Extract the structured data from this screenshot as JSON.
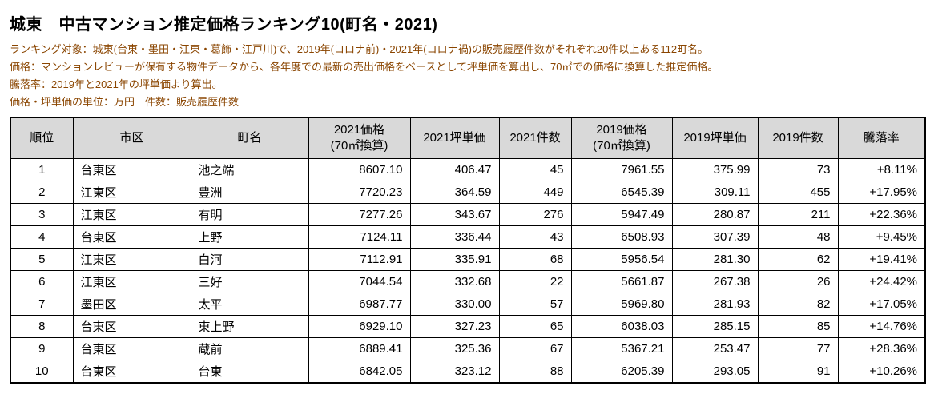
{
  "page": {
    "title": "城東　中古マンション推定価格ランキング10(町名・2021)",
    "notes": [
      "ランキング対象：城東(台東・墨田・江東・葛飾・江戸川)で、2019年(コロナ前)・2021年(コロナ禍)の販売履歴件数がそれぞれ20件以上ある112町名。",
      "価格：マンションレビューが保有する物件データから、各年度での最新の売出価格をベースとして坪単価を算出し、70㎡での価格に換算した推定価格。",
      "騰落率：2019年と2021年の坪単価より算出。",
      "価格・坪単価の単位：万円　件数：販売履歴件数"
    ]
  },
  "table": {
    "column_keys": [
      "rank",
      "ward",
      "town",
      "price-2021",
      "tsubo-price-2021",
      "count-2021",
      "price-2019",
      "tsubo-price-2019",
      "count-2019",
      "change-rate"
    ],
    "headers": [
      {
        "line1": "順位"
      },
      {
        "line1": "市区"
      },
      {
        "line1": "町名"
      },
      {
        "line1": "2021価格",
        "line2": "(70㎡換算)"
      },
      {
        "line1": "2021坪単価"
      },
      {
        "line1": "2021件数"
      },
      {
        "line1": "2019価格",
        "line2": "(70㎡換算)"
      },
      {
        "line1": "2019坪単価"
      },
      {
        "line1": "2019件数"
      },
      {
        "line1": "騰落率"
      }
    ],
    "rows": [
      [
        "1",
        "台東区",
        "池之端",
        "8607.10",
        "406.47",
        "45",
        "7961.55",
        "375.99",
        "73",
        "+8.11%"
      ],
      [
        "2",
        "江東区",
        "豊洲",
        "7720.23",
        "364.59",
        "449",
        "6545.39",
        "309.11",
        "455",
        "+17.95%"
      ],
      [
        "3",
        "江東区",
        "有明",
        "7277.26",
        "343.67",
        "276",
        "5947.49",
        "280.87",
        "211",
        "+22.36%"
      ],
      [
        "4",
        "台東区",
        "上野",
        "7124.11",
        "336.44",
        "43",
        "6508.93",
        "307.39",
        "48",
        "+9.45%"
      ],
      [
        "5",
        "江東区",
        "白河",
        "7112.91",
        "335.91",
        "68",
        "5956.54",
        "281.30",
        "62",
        "+19.41%"
      ],
      [
        "6",
        "江東区",
        "三好",
        "7044.54",
        "332.68",
        "22",
        "5661.87",
        "267.38",
        "26",
        "+24.42%"
      ],
      [
        "7",
        "墨田区",
        "太平",
        "6987.77",
        "330.00",
        "57",
        "5969.80",
        "281.93",
        "82",
        "+17.05%"
      ],
      [
        "8",
        "台東区",
        "東上野",
        "6929.10",
        "327.23",
        "65",
        "6038.03",
        "285.15",
        "85",
        "+14.76%"
      ],
      [
        "9",
        "台東区",
        "蔵前",
        "6889.41",
        "325.36",
        "67",
        "5367.21",
        "253.47",
        "77",
        "+28.36%"
      ],
      [
        "10",
        "台東区",
        "台東",
        "6842.05",
        "323.12",
        "88",
        "6205.39",
        "293.05",
        "91",
        "+10.26%"
      ]
    ]
  }
}
